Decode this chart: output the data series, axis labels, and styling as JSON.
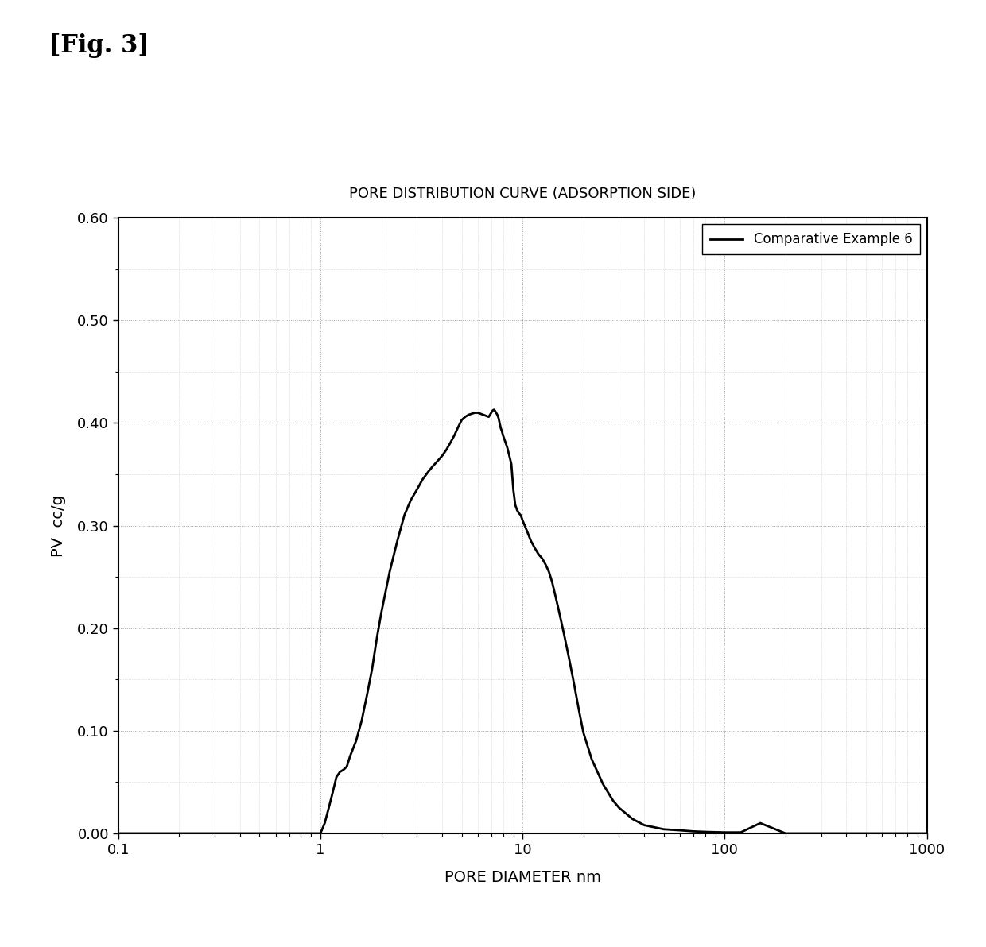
{
  "title": "PORE DISTRIBUTION CURVE (ADSORPTION SIDE)",
  "xlabel": "PORE DIAMETER nm",
  "ylabel": "PV  cc/g",
  "legend_label": "Comparative Example 6",
  "xlim": [
    0.1,
    1000
  ],
  "ylim": [
    0.0,
    0.6
  ],
  "yticks": [
    0.0,
    0.1,
    0.2,
    0.3,
    0.4,
    0.5,
    0.6
  ],
  "fig_label": "[Fig. 3]",
  "line_color": "#000000",
  "background_color": "#ffffff",
  "curve_x": [
    0.1,
    0.2,
    0.3,
    0.4,
    0.5,
    0.6,
    0.7,
    0.8,
    0.9,
    1.0,
    1.05,
    1.1,
    1.15,
    1.2,
    1.25,
    1.3,
    1.35,
    1.4,
    1.5,
    1.6,
    1.7,
    1.8,
    1.9,
    2.0,
    2.2,
    2.4,
    2.6,
    2.8,
    3.0,
    3.2,
    3.4,
    3.6,
    3.8,
    4.0,
    4.2,
    4.4,
    4.6,
    4.8,
    5.0,
    5.2,
    5.4,
    5.6,
    5.8,
    6.0,
    6.2,
    6.4,
    6.6,
    6.8,
    7.0,
    7.1,
    7.2,
    7.3,
    7.4,
    7.5,
    7.6,
    7.7,
    7.8,
    7.9,
    8.0,
    8.2,
    8.4,
    8.5,
    8.6,
    8.8,
    9.0,
    9.2,
    9.4,
    9.6,
    9.8,
    10.0,
    10.5,
    11.0,
    11.5,
    12.0,
    12.5,
    13.0,
    13.5,
    14.0,
    15.0,
    16.0,
    17.0,
    18.0,
    19.0,
    20.0,
    22.0,
    25.0,
    28.0,
    30.0,
    35.0,
    40.0,
    50.0,
    60.0,
    70.0,
    80.0,
    100.0,
    120.0,
    150.0,
    200.0,
    500.0,
    1000.0
  ],
  "curve_y": [
    0.0,
    0.0,
    0.0,
    0.0,
    0.0,
    0.0,
    0.0,
    0.0,
    0.0,
    0.0,
    0.01,
    0.025,
    0.04,
    0.055,
    0.06,
    0.062,
    0.065,
    0.075,
    0.09,
    0.11,
    0.135,
    0.16,
    0.19,
    0.215,
    0.255,
    0.285,
    0.31,
    0.325,
    0.335,
    0.345,
    0.352,
    0.358,
    0.363,
    0.368,
    0.374,
    0.381,
    0.388,
    0.396,
    0.403,
    0.406,
    0.408,
    0.409,
    0.41,
    0.41,
    0.409,
    0.408,
    0.407,
    0.406,
    0.41,
    0.412,
    0.413,
    0.412,
    0.41,
    0.408,
    0.405,
    0.4,
    0.395,
    0.392,
    0.388,
    0.382,
    0.376,
    0.372,
    0.368,
    0.36,
    0.335,
    0.32,
    0.315,
    0.312,
    0.31,
    0.305,
    0.295,
    0.285,
    0.278,
    0.272,
    0.268,
    0.262,
    0.255,
    0.245,
    0.22,
    0.195,
    0.17,
    0.145,
    0.12,
    0.098,
    0.072,
    0.048,
    0.032,
    0.025,
    0.014,
    0.008,
    0.004,
    0.003,
    0.002,
    0.0015,
    0.001,
    0.001,
    0.01,
    0.0,
    0.0,
    0.0
  ]
}
